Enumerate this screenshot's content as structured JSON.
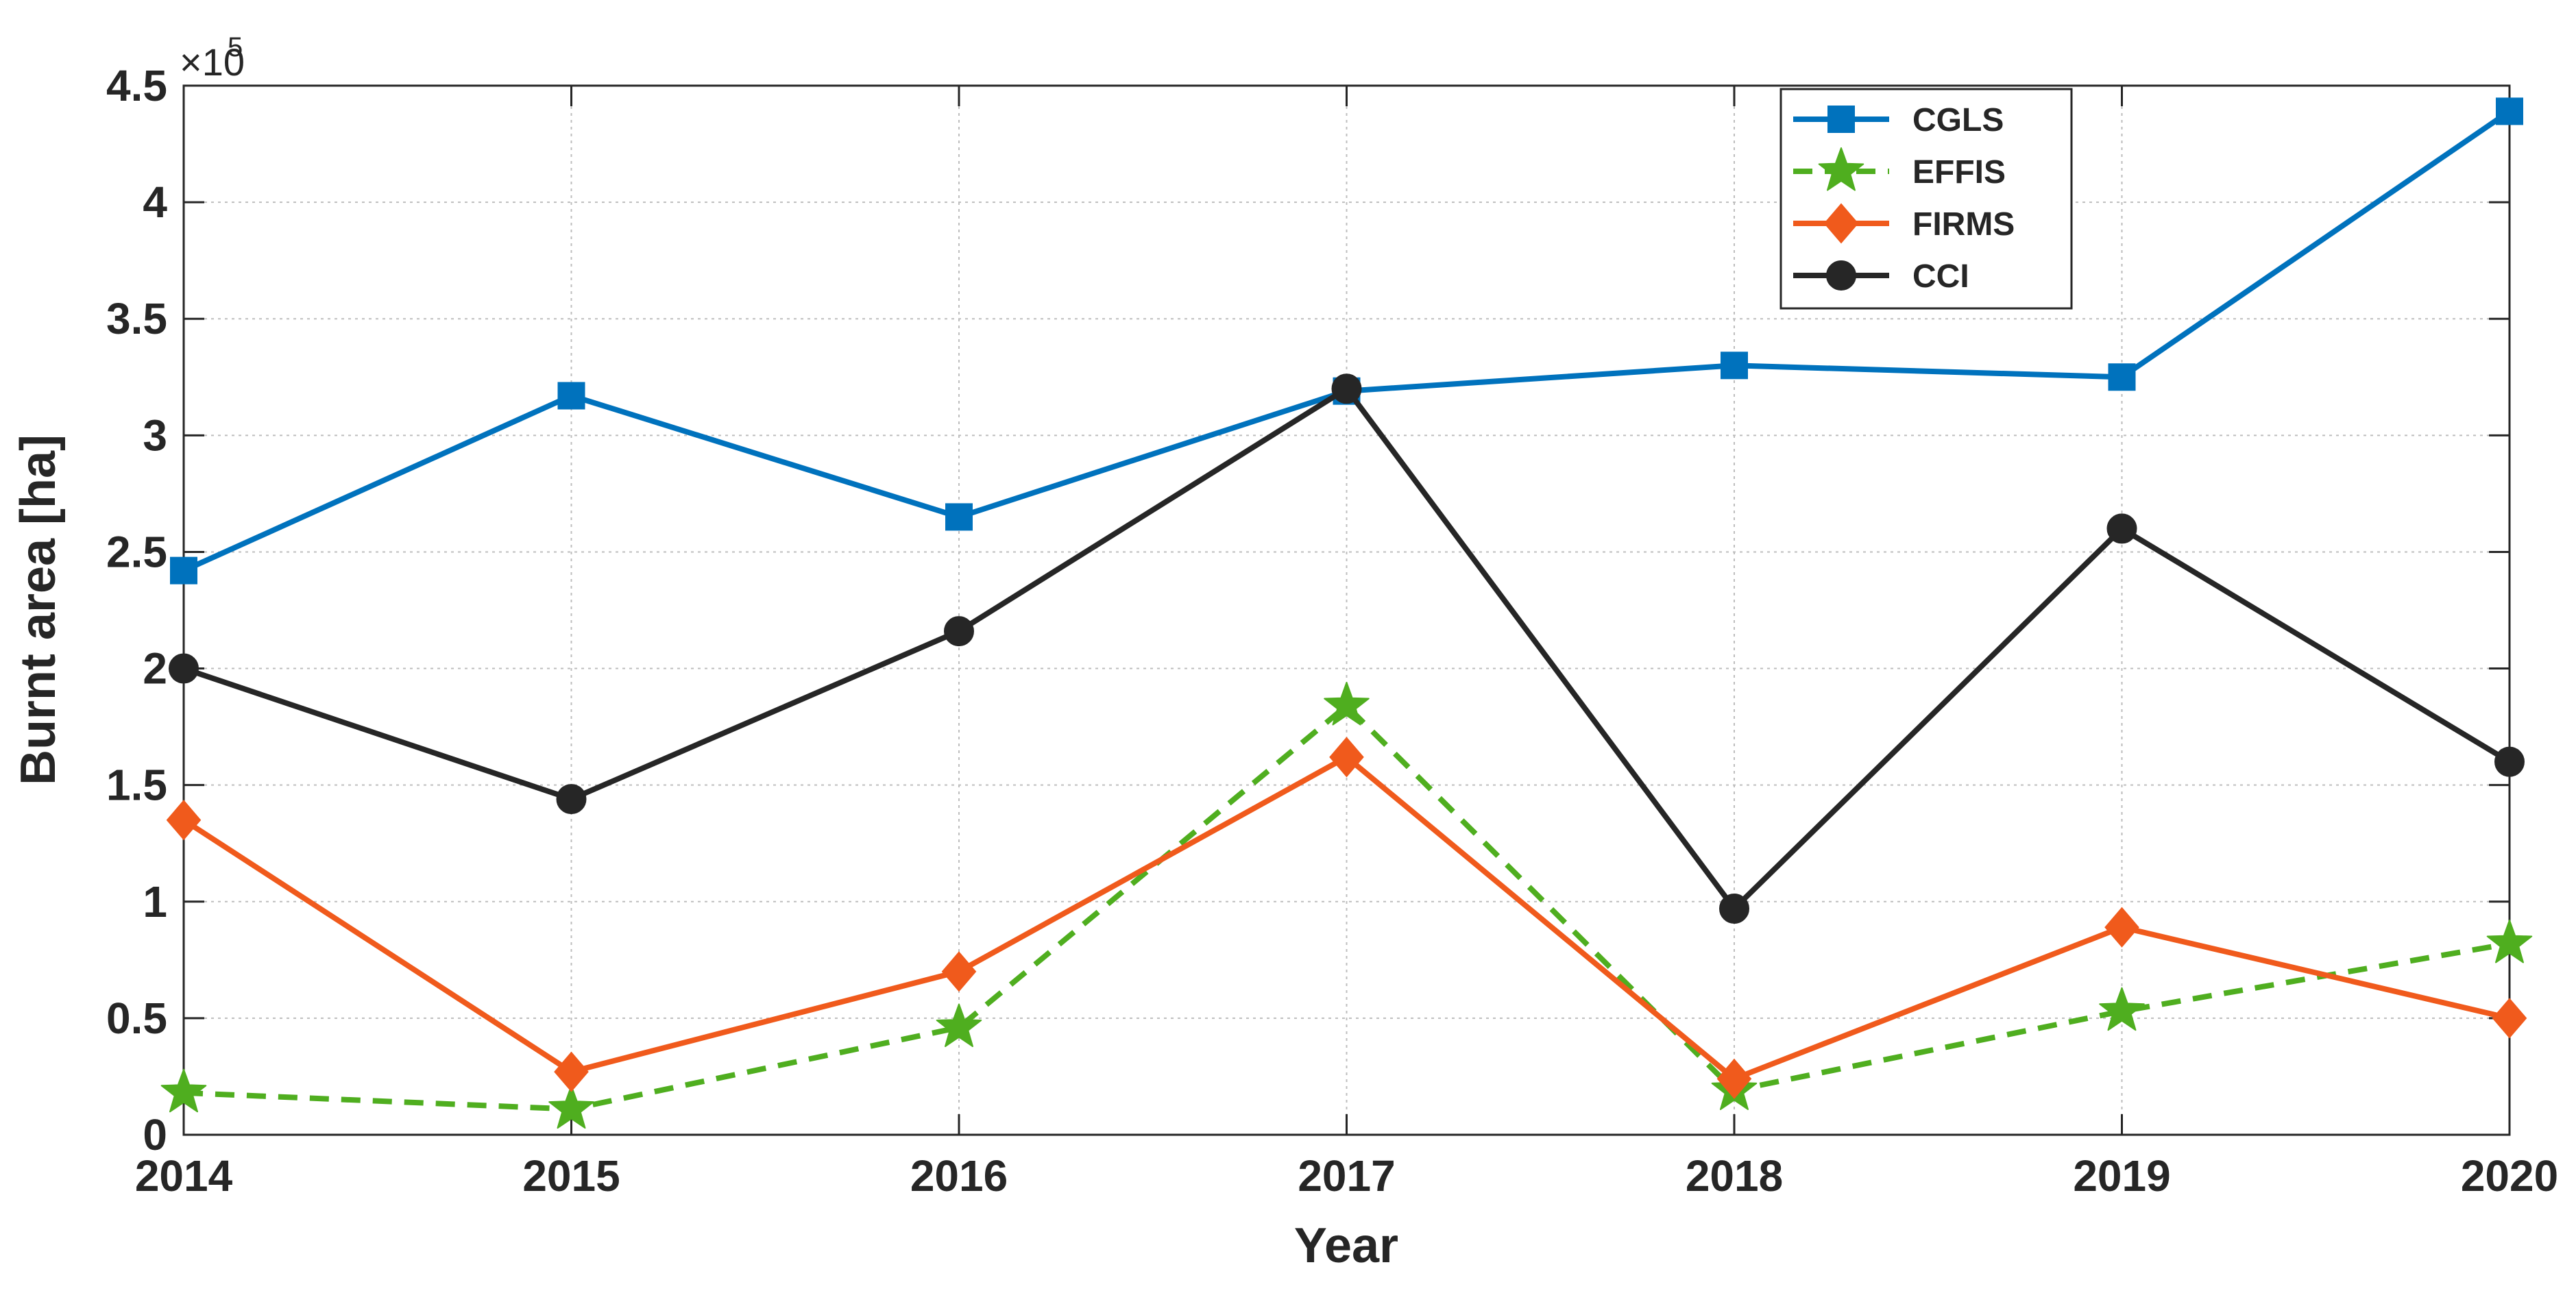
{
  "chart_data": {
    "type": "line",
    "title": "",
    "xlabel": "Year",
    "ylabel": "Burnt area [ha]",
    "y_multiplier_label": "×10",
    "y_multiplier_exponent": "5",
    "y_multiplier": 100000,
    "x": [
      2014,
      2015,
      2016,
      2017,
      2018,
      2019,
      2020
    ],
    "x_tick_labels": [
      "2014",
      "2015",
      "2016",
      "2017",
      "2018",
      "2019",
      "2020"
    ],
    "xlim": [
      2014,
      2020
    ],
    "ylim": [
      0,
      4.5
    ],
    "y_ticks": [
      0,
      0.5,
      1,
      1.5,
      2,
      2.5,
      3,
      3.5,
      4,
      4.5
    ],
    "y_tick_labels": [
      "0",
      "0.5",
      "1",
      "1.5",
      "2",
      "2.5",
      "3",
      "3.5",
      "4",
      "4.5"
    ],
    "grid": true,
    "legend_position": "top-right",
    "series": [
      {
        "name": "CGLS",
        "values": [
          2.42,
          3.17,
          2.65,
          3.19,
          3.3,
          3.25,
          4.39
        ],
        "color": "#0072bd",
        "marker": "square",
        "dash": "solid"
      },
      {
        "name": "EFFIS",
        "values": [
          0.18,
          0.11,
          0.46,
          1.84,
          0.19,
          0.53,
          0.82
        ],
        "color": "#4fae1f",
        "marker": "star",
        "dash": "dashed"
      },
      {
        "name": "FIRMS",
        "values": [
          1.35,
          0.27,
          0.7,
          1.62,
          0.24,
          0.89,
          0.5
        ],
        "color": "#f05a1c",
        "marker": "diamond",
        "dash": "solid"
      },
      {
        "name": "CCI",
        "values": [
          2.0,
          1.44,
          2.16,
          3.2,
          0.97,
          2.6,
          1.6
        ],
        "color": "#262626",
        "marker": "circle",
        "dash": "solid"
      }
    ]
  }
}
